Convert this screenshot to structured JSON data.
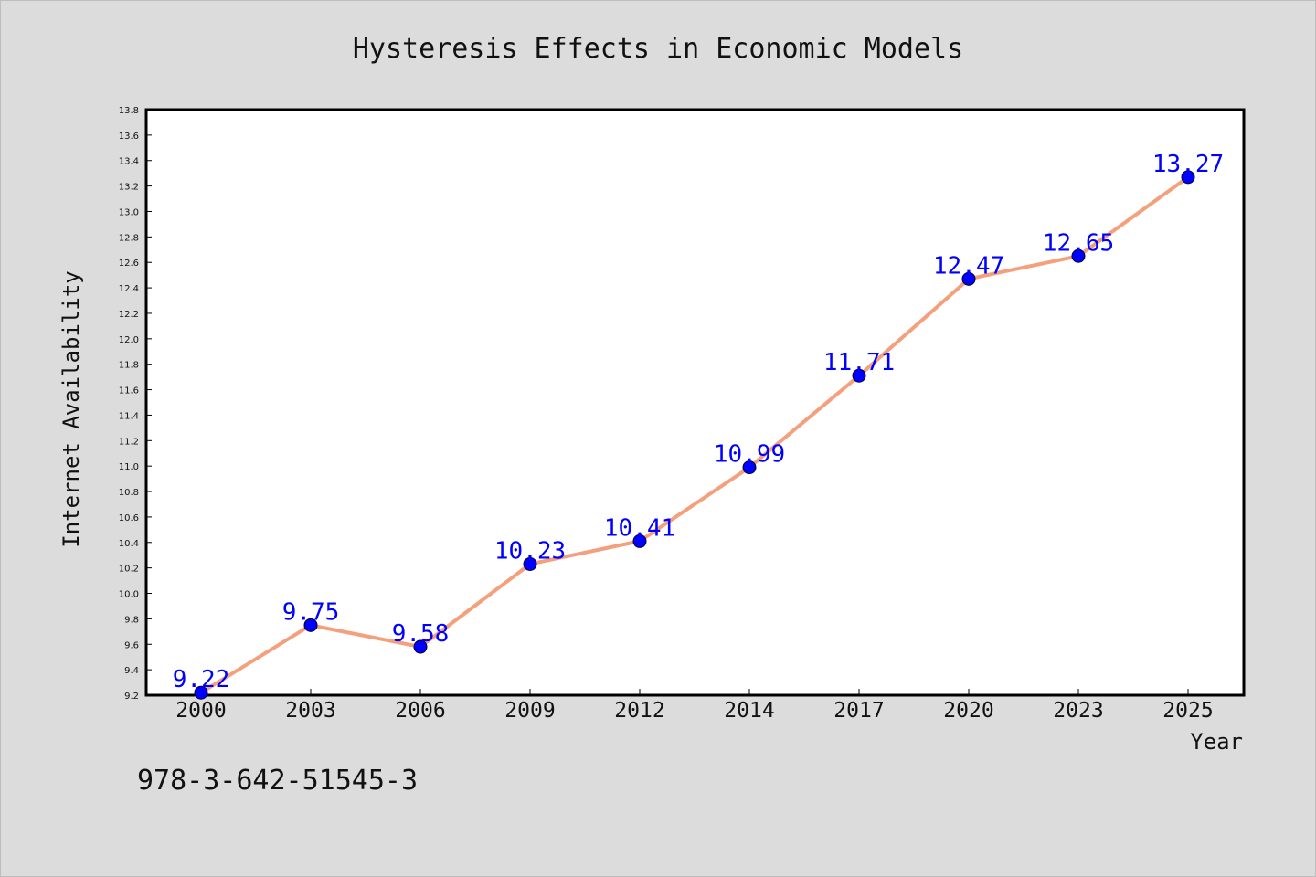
{
  "chart_data": {
    "type": "line",
    "title": "Hysteresis Effects in Economic Models",
    "xlabel": "Year",
    "ylabel": "Internet Availability",
    "categories": [
      "2000",
      "2003",
      "2006",
      "2009",
      "2012",
      "2014",
      "2017",
      "2020",
      "2023",
      "2025"
    ],
    "series": [
      {
        "values": [
          9.22,
          9.75,
          9.58,
          10.23,
          10.41,
          10.99,
          11.71,
          12.47,
          12.65,
          13.27
        ],
        "data_labels": [
          "9.22",
          "9.75",
          "9.58",
          "10.23",
          "10.41",
          "10.99",
          "11.71",
          "12.47",
          "12.65",
          "13.27"
        ],
        "line_color": "#f4a07c",
        "marker_color": "#0000ff"
      }
    ],
    "ylim": [
      9.2,
      13.8
    ],
    "yticks": [
      "9.2",
      "9.4",
      "9.6",
      "9.8",
      "10.0",
      "10.2",
      "10.4",
      "10.6",
      "10.8",
      "11.0",
      "11.2",
      "11.4",
      "11.6",
      "11.8",
      "12.0",
      "12.2",
      "12.4",
      "12.6",
      "12.8",
      "13.0",
      "13.2",
      "13.4",
      "13.6",
      "13.8"
    ],
    "grid": false,
    "legend": "none"
  },
  "annotation": {
    "isbn": "978-3-642-51545-3"
  },
  "colors": {
    "background": "#dcdcdc",
    "plot_background": "#ffffff",
    "line": "#f4a07c",
    "marker": "#0000ff",
    "data_label": "#0000ff"
  }
}
